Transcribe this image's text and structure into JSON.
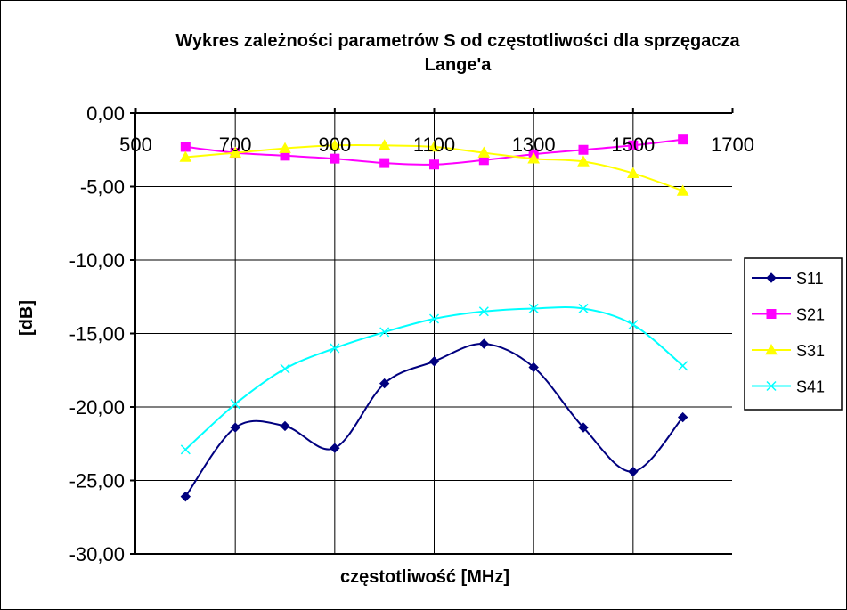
{
  "chart_data": {
    "type": "line",
    "title": "Wykres zależności parametrów S od częstotliwości dla sprzęgacza Lange'a",
    "title_lines": [
      "Wykres zależności parametrów S od częstotliwości dla sprzęgacza",
      "Lange'a"
    ],
    "xlabel": "częstotliwość  [MHz]",
    "ylabel": "[dB]",
    "xlim": [
      500,
      1700
    ],
    "ylim": [
      -30,
      0
    ],
    "x_ticks": [
      500,
      700,
      900,
      1100,
      1300,
      1500,
      1700
    ],
    "y_ticks": [
      0,
      -5,
      -10,
      -15,
      -20,
      -25,
      -30
    ],
    "x_tick_labels": [
      "500",
      "700",
      "900",
      "1100",
      "1300",
      "1500",
      "1700"
    ],
    "y_tick_labels": [
      "0,00",
      "-5,00",
      "-10,00",
      "-15,00",
      "-20,00",
      "-25,00",
      "-30,00"
    ],
    "grid": true,
    "legend_position": "right",
    "x": [
      600,
      700,
      800,
      900,
      1000,
      1100,
      1200,
      1300,
      1400,
      1500,
      1600
    ],
    "series": [
      {
        "name": "S11",
        "color": "#00007f",
        "marker": "diamond",
        "values": [
          -26.1,
          -21.4,
          -21.3,
          -22.8,
          -18.4,
          -16.9,
          -15.7,
          -17.3,
          -21.4,
          -24.4,
          -20.7
        ]
      },
      {
        "name": "S21",
        "color": "#ff00ff",
        "marker": "square",
        "values": [
          -2.3,
          -2.7,
          -2.9,
          -3.1,
          -3.4,
          -3.5,
          -3.2,
          -2.8,
          -2.5,
          -2.2,
          -1.8
        ]
      },
      {
        "name": "S31",
        "color": "#ffff00",
        "marker": "triangle",
        "values": [
          -3.0,
          -2.7,
          -2.4,
          -2.2,
          -2.2,
          -2.3,
          -2.7,
          -3.1,
          -3.3,
          -4.1,
          -5.3
        ]
      },
      {
        "name": "S41",
        "color": "#00ffff",
        "marker": "x",
        "values": [
          -22.9,
          -19.8,
          -17.4,
          -16.0,
          -14.9,
          -14.0,
          -13.5,
          -13.3,
          -13.3,
          -14.4,
          -17.2
        ]
      }
    ]
  }
}
